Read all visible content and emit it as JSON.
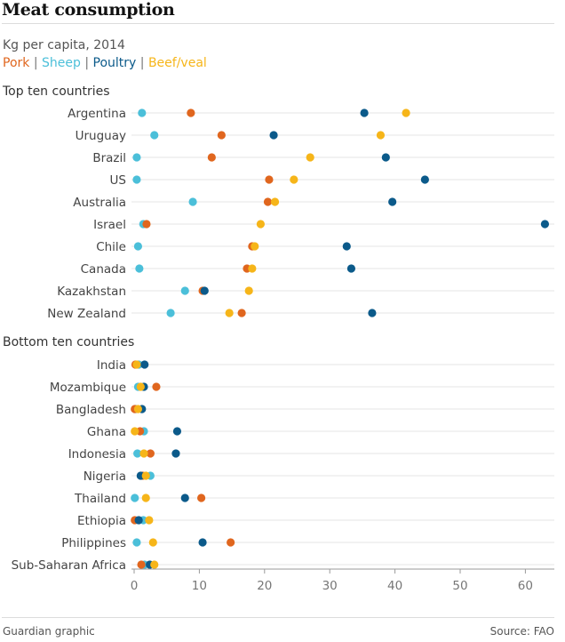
{
  "header": {
    "title": "Meat consumption",
    "subtitle": "Kg per capita, 2014"
  },
  "legend": {
    "items": [
      {
        "label": "Pork",
        "color": "#e0661e"
      },
      {
        "label": "Sheep",
        "color": "#4bbfd9"
      },
      {
        "label": "Poultry",
        "color": "#0b5a8a"
      },
      {
        "label": "Beef/veal",
        "color": "#f6b519"
      }
    ],
    "separator": "|"
  },
  "footer": {
    "credit": "Guardian graphic",
    "source": "Source: FAO"
  },
  "chart_data": {
    "type": "scatter",
    "title": "Meat consumption",
    "subtitle": "Kg per capita, 2014",
    "xlim": [
      0,
      63
    ],
    "x_ticks": [
      0,
      10,
      20,
      30,
      40,
      50,
      60
    ],
    "grid": false,
    "series_order": [
      "Sheep",
      "Pork",
      "Poultry",
      "Beef/veal"
    ],
    "series_colors": {
      "Pork": "#e0661e",
      "Sheep": "#4bbfd9",
      "Poultry": "#0b5a8a",
      "Beef/veal": "#f6b519"
    },
    "groups": [
      {
        "name": "Top ten countries",
        "rows": [
          {
            "country": "Argentina",
            "Pork": 8.7,
            "Sheep": 1.2,
            "Poultry": 35.3,
            "Beef/veal": 41.7
          },
          {
            "country": "Uruguay",
            "Pork": 13.4,
            "Sheep": 3.1,
            "Poultry": 21.4,
            "Beef/veal": 37.8
          },
          {
            "country": "Brazil",
            "Pork": 11.9,
            "Sheep": 0.4,
            "Poultry": 38.6,
            "Beef/veal": 27.0
          },
          {
            "country": "US",
            "Pork": 20.7,
            "Sheep": 0.4,
            "Poultry": 44.6,
            "Beef/veal": 24.5
          },
          {
            "country": "Australia",
            "Pork": 20.5,
            "Sheep": 9.0,
            "Poultry": 39.6,
            "Beef/veal": 21.6
          },
          {
            "country": "Israel",
            "Pork": 1.9,
            "Sheep": 1.4,
            "Poultry": 63.0,
            "Beef/veal": 19.4
          },
          {
            "country": "Chile",
            "Pork": 18.1,
            "Sheep": 0.6,
            "Poultry": 32.6,
            "Beef/veal": 18.5
          },
          {
            "country": "Canada",
            "Pork": 17.3,
            "Sheep": 0.8,
            "Poultry": 33.3,
            "Beef/veal": 18.1
          },
          {
            "country": "Kazakhstan",
            "Pork": 10.5,
            "Sheep": 7.8,
            "Poultry": 10.8,
            "Beef/veal": 17.6
          },
          {
            "country": "New Zealand",
            "Pork": 16.5,
            "Sheep": 5.6,
            "Poultry": 36.5,
            "Beef/veal": 14.6
          }
        ]
      },
      {
        "name": "Bottom ten countries",
        "rows": [
          {
            "country": "India",
            "Pork": 0.2,
            "Sheep": 0.7,
            "Poultry": 1.6,
            "Beef/veal": 0.4
          },
          {
            "country": "Mozambique",
            "Pork": 3.4,
            "Sheep": 0.6,
            "Poultry": 1.5,
            "Beef/veal": 1.0
          },
          {
            "country": "Bangladesh",
            "Pork": 0.1,
            "Sheep": 0.2,
            "Poultry": 1.2,
            "Beef/veal": 0.6
          },
          {
            "country": "Ghana",
            "Pork": 0.9,
            "Sheep": 1.5,
            "Poultry": 6.6,
            "Beef/veal": 0.1
          },
          {
            "country": "Indonesia",
            "Pork": 2.5,
            "Sheep": 0.5,
            "Poultry": 6.4,
            "Beef/veal": 1.5
          },
          {
            "country": "Nigeria",
            "Pork": 1.3,
            "Sheep": 2.5,
            "Poultry": 1.0,
            "Beef/veal": 1.8
          },
          {
            "country": "Thailand",
            "Pork": 10.3,
            "Sheep": 0.1,
            "Poultry": 7.8,
            "Beef/veal": 1.8
          },
          {
            "country": "Ethiopia",
            "Pork": 0.1,
            "Sheep": 1.4,
            "Poultry": 0.7,
            "Beef/veal": 2.3
          },
          {
            "country": "Philippines",
            "Pork": 14.8,
            "Sheep": 0.4,
            "Poultry": 10.5,
            "Beef/veal": 2.9
          },
          {
            "country": "Sub-Saharan Africa",
            "Pork": 1.1,
            "Sheep": 1.6,
            "Poultry": 2.4,
            "Beef/veal": 3.1
          }
        ]
      }
    ]
  }
}
